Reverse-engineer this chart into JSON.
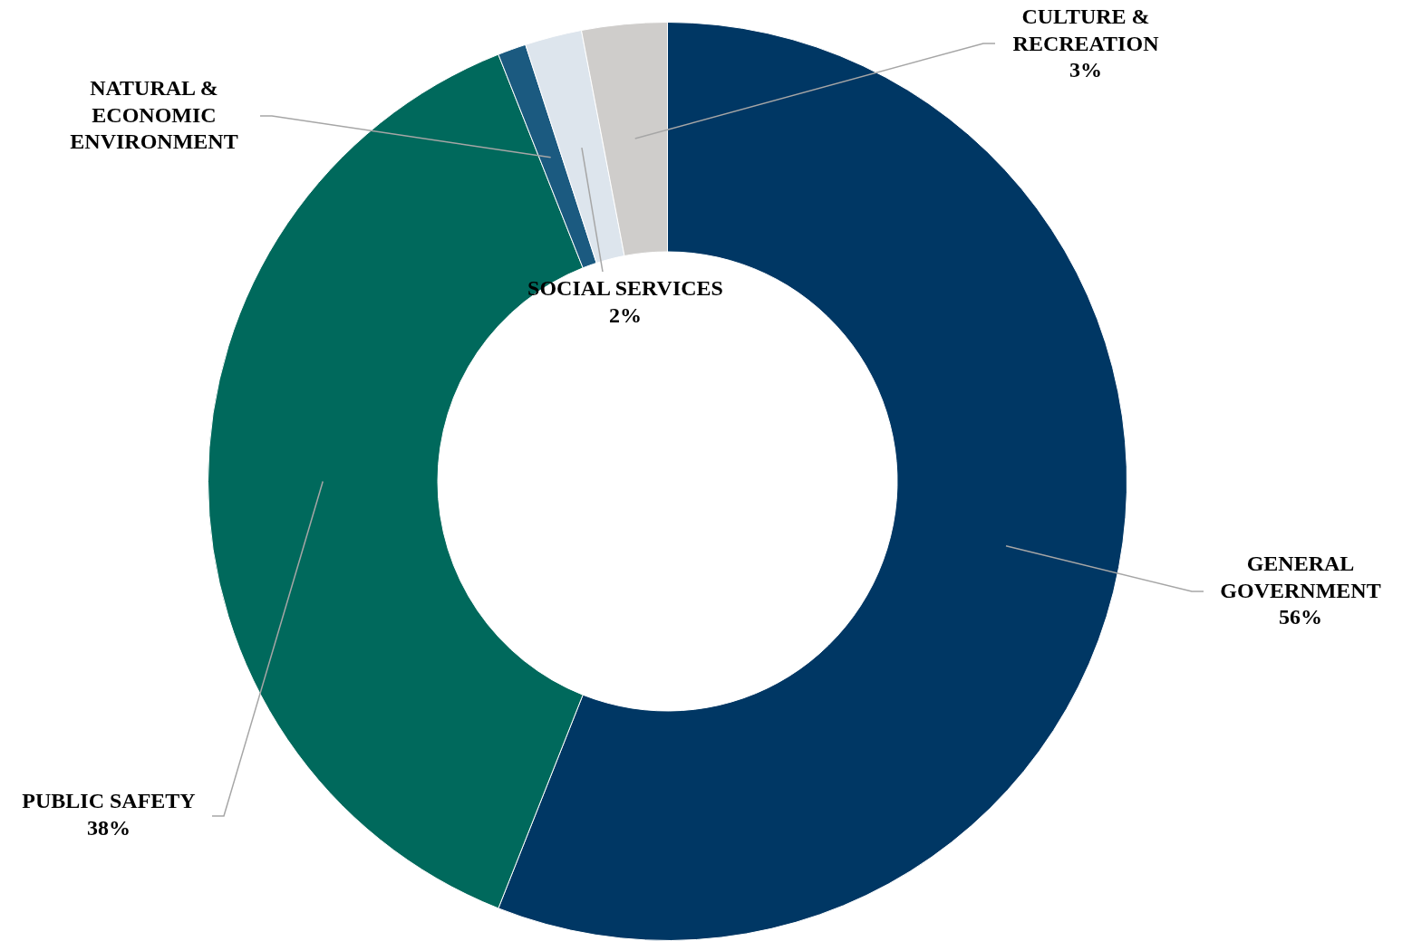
{
  "chart_data": {
    "type": "donut",
    "categories": [
      "GENERAL GOVERNMENT",
      "PUBLIC SAFETY",
      "NATURAL & ECONOMIC ENVIRONMENT",
      "SOCIAL SERVICES",
      "CULTURE & RECREATION"
    ],
    "values": [
      56,
      38,
      1,
      2,
      3
    ],
    "colors": [
      "#003764",
      "#00695c",
      "#1b5a80",
      "#dde5ed",
      "#cfcdcb"
    ],
    "value_labels": [
      "56%",
      "38%",
      null,
      "2%",
      "3%"
    ]
  }
}
